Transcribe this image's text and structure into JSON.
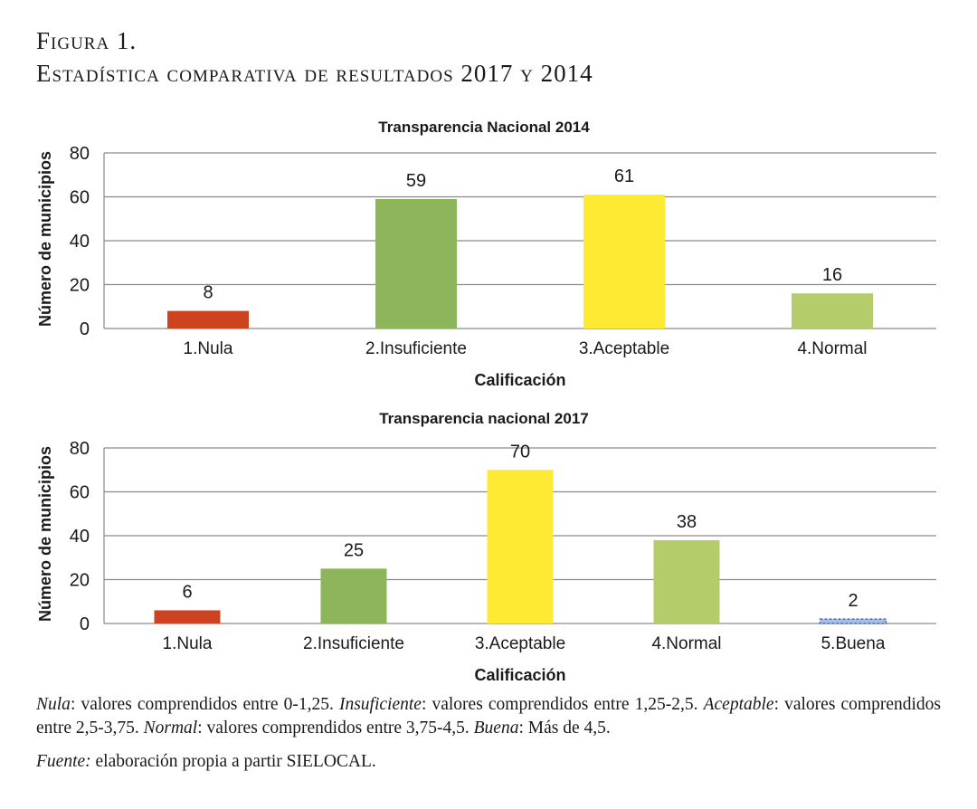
{
  "figure": {
    "label": "Figura 1.",
    "title": "Estadística comparativa de resultados 2017 y 2014"
  },
  "colors": {
    "nula": "#cd4320",
    "insuficiente": "#8db55a",
    "aceptable": "#ffea33",
    "normal": "#b4cc6a",
    "buena": "#a9bde3",
    "buena_border": "#4a6fb5"
  },
  "chart_data": [
    {
      "type": "bar",
      "title": "Transparencia Nacional 2014",
      "xlabel": "Calificación",
      "ylabel": "Número de municipios",
      "ylim": [
        0,
        80
      ],
      "yticks": [
        0,
        20,
        40,
        60,
        80
      ],
      "grid": true,
      "categories": [
        "1.Nula",
        "2.Insuficiente",
        "3.Aceptable",
        "4.Normal"
      ],
      "values": [
        8,
        59,
        61,
        16
      ],
      "data_labels": [
        "8",
        "59",
        "61",
        "16"
      ],
      "bar_colors": [
        "#cd4320",
        "#8db55a",
        "#ffea33",
        "#b4cc6a"
      ]
    },
    {
      "type": "bar",
      "title": "Transparencia nacional 2017",
      "xlabel": "Calificación",
      "ylabel": "Número de municipios",
      "ylim": [
        0,
        80
      ],
      "yticks": [
        0,
        20,
        40,
        60,
        80
      ],
      "grid": true,
      "categories": [
        "1.Nula",
        "2.Insuficiente",
        "3.Aceptable",
        "4.Normal",
        "5.Buena"
      ],
      "values": [
        6,
        25,
        70,
        38,
        2
      ],
      "data_labels": [
        "6",
        "25",
        "70",
        "38",
        "2"
      ],
      "bar_colors": [
        "#cd4320",
        "#8db55a",
        "#ffea33",
        "#b4cc6a",
        "#a9bde3"
      ]
    }
  ],
  "notes": {
    "nula_term": "Nula",
    "nula_text": ": valores comprendidos entre 0-1,25. ",
    "insuficiente_term": "Insuficiente",
    "insuficiente_text": ": valores comprendidos entre 1,25-2,5. ",
    "aceptable_term": "Aceptable",
    "aceptable_text": ": valores comprendidos entre 2,5-3,75. ",
    "normal_term": "Normal",
    "normal_text": ": valores comprendidos entre 3,75-4,5. ",
    "buena_term": "Buena",
    "buena_text": ": Más de 4,5.",
    "source_term": "Fuente:",
    "source_text": " elaboración propia a partir SIELOCAL."
  }
}
